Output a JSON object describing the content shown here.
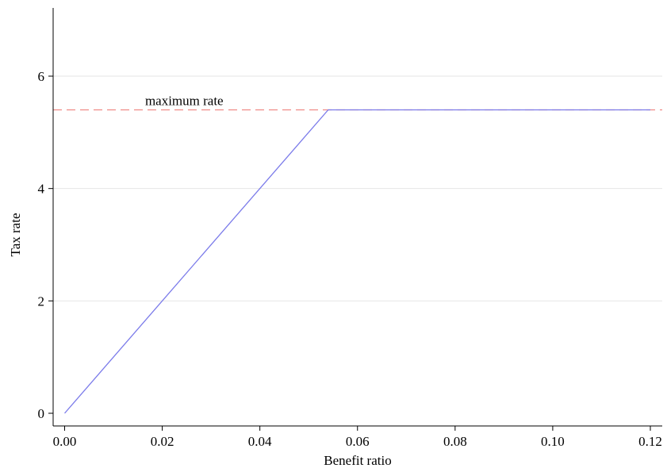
{
  "chart_data": {
    "type": "line",
    "title": "",
    "xlabel": "Benefit ratio",
    "ylabel": "Tax rate",
    "xlim": [
      -0.002,
      0.1225
    ],
    "ylim": [
      -0.35,
      7.2
    ],
    "x_ticks": [
      "0.00",
      "0.02",
      "0.04",
      "0.06",
      "0.08",
      "0.10",
      "0.12"
    ],
    "y_ticks": [
      "0",
      "2",
      "4",
      "6"
    ],
    "grid": "horizontal",
    "series": [
      {
        "color": "#7b7bea",
        "style": "solid",
        "points": [
          [
            0.0,
            0.0
          ],
          [
            0.054,
            5.4
          ],
          [
            0.12,
            5.4
          ]
        ]
      }
    ],
    "reference_lines": [
      {
        "y": 5.4,
        "color": "#ef8a86",
        "style": "dashed",
        "label": "maximum rate",
        "label_x": 0.0245
      }
    ]
  }
}
